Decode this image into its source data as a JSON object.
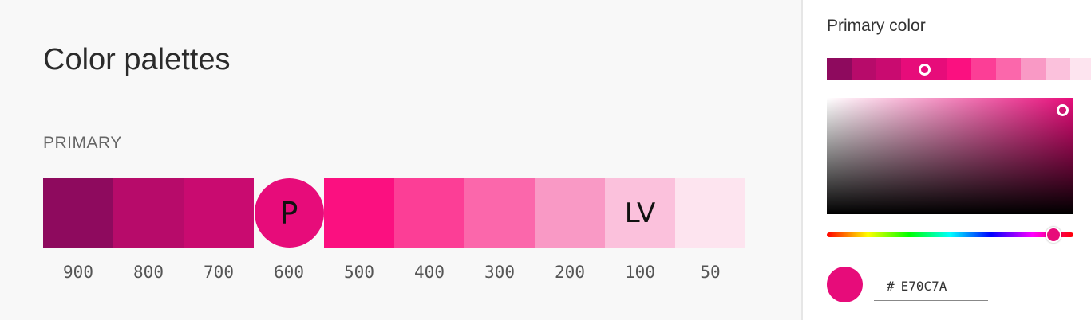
{
  "page": {
    "title": "Color palettes",
    "section_label": "PRIMARY"
  },
  "palette": {
    "swatches": [
      {
        "shade": "900",
        "color": "#8e0a5e",
        "label": ""
      },
      {
        "shade": "800",
        "color": "#b70b6a",
        "label": ""
      },
      {
        "shade": "700",
        "color": "#c90b70",
        "label": ""
      },
      {
        "shade": "600",
        "color": "#e70c7a",
        "label": "P"
      },
      {
        "shade": "500",
        "color": "#fb1080",
        "label": ""
      },
      {
        "shade": "400",
        "color": "#fc3e96",
        "label": ""
      },
      {
        "shade": "300",
        "color": "#fb67ab",
        "label": ""
      },
      {
        "shade": "200",
        "color": "#f999c5",
        "label": ""
      },
      {
        "shade": "100",
        "color": "#fbc1dc",
        "label": "LV"
      },
      {
        "shade": "50",
        "color": "#fde4ef",
        "label": ""
      }
    ]
  },
  "picker": {
    "title": "Primary color",
    "mini_swatches": [
      {
        "color": "#8e0a5e"
      },
      {
        "color": "#b70b6a"
      },
      {
        "color": "#c90b70"
      },
      {
        "color": "#e70c7a",
        "selected": true
      },
      {
        "color": "#fb1080"
      },
      {
        "color": "#fc3e96"
      },
      {
        "color": "#fb67ab"
      },
      {
        "color": "#f999c5"
      },
      {
        "color": "#fbc1dc"
      },
      {
        "color": "#fde4ef"
      }
    ],
    "hue_level_percent": 92,
    "current_color": "#e70c7a",
    "hex_prefix": "#",
    "hex_value": "E70C7A"
  }
}
